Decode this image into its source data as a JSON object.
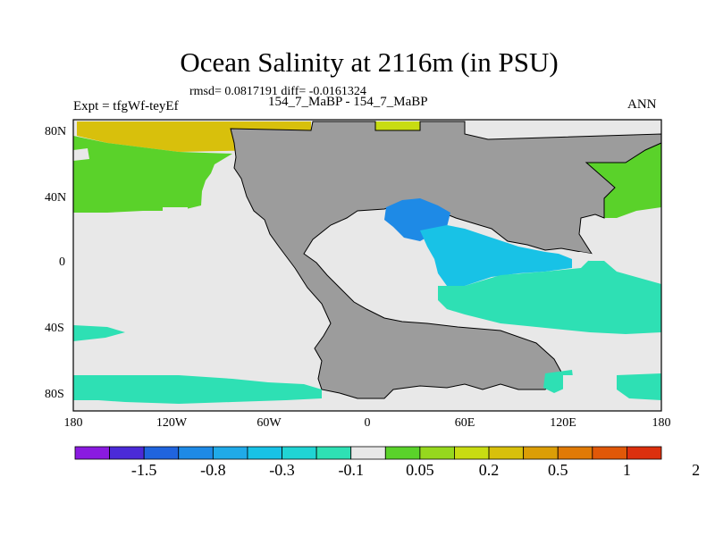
{
  "title": "Ocean Salinity at 2116m (in PSU)",
  "stats_line": "rmsd= 0.0817191 diff= -0.0161324",
  "experiment": "Expt = tfgWf-teyEf",
  "case": "154_7_MaBP - 154_7_MaBP",
  "season": "ANN",
  "lat_labels": [
    "80N",
    "40N",
    "0",
    "40S",
    "80S"
  ],
  "lon_labels": [
    "180",
    "120W",
    "60W",
    "0",
    "60E",
    "120E",
    "180"
  ],
  "colorbar": {
    "colors": [
      "#8a1ae0",
      "#4b2ad8",
      "#2064de",
      "#1e8ae6",
      "#20aae8",
      "#18c2e6",
      "#20d4d4",
      "#2ee0b4",
      "#e8e8e8",
      "#5ad22a",
      "#96d81e",
      "#c8dc12",
      "#d8c00c",
      "#dc9e06",
      "#e07a06",
      "#e05808",
      "#dc300e"
    ],
    "labels": [
      "-1.5",
      "-0.8",
      "-0.3",
      "-0.1",
      "0.05",
      "0.2",
      "0.5",
      "1",
      "2"
    ]
  },
  "map_colors": {
    "land": "#9c9c9c",
    "neutral": "#e8e8e8",
    "green": "#5ad22a",
    "light_green": "#96d81e",
    "yellow": "#c8dc12",
    "gold": "#d8c00c",
    "teal": "#2ee0b4",
    "cyan": "#20d4d4",
    "sky": "#18c2e6",
    "blue": "#1e8ae6"
  }
}
